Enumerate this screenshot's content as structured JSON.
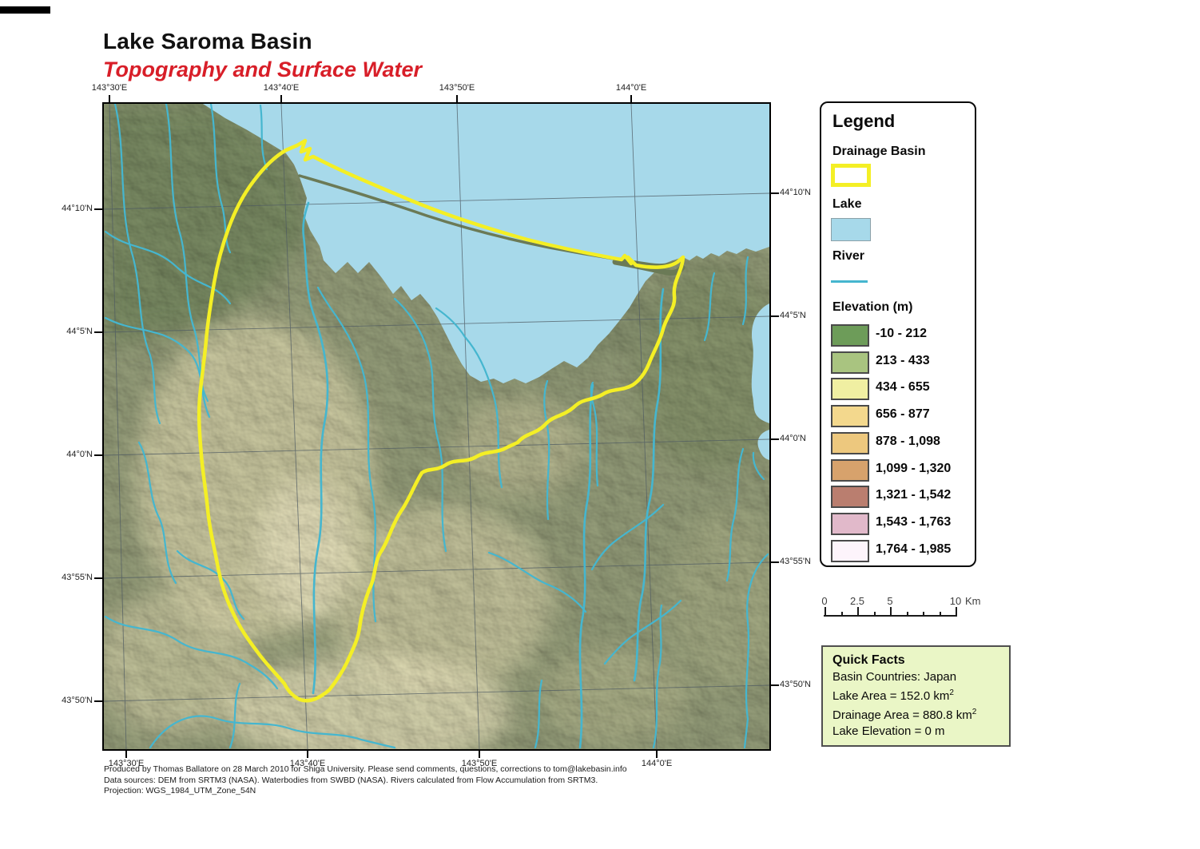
{
  "title": "Lake Saroma Basin",
  "subtitle": "Topography and Surface Water",
  "map": {
    "grid": {
      "top": [
        "143°30'E",
        "143°40'E",
        "143°50'E",
        "144°0'E"
      ],
      "bottom": [
        "143°30'E",
        "143°40'E",
        "143°50'E",
        "144°0'E"
      ],
      "left": [
        "44°10'N",
        "44°5'N",
        "44°0'N",
        "43°55'N",
        "43°50'N"
      ],
      "right": [
        "44°10'N",
        "44°5'N",
        "44°0'N",
        "43°55'N",
        "43°50'N"
      ]
    },
    "features": [
      "drainage-basin-outline",
      "lake-saroma",
      "sea-of-okhotsk",
      "sand-spit",
      "rivers",
      "graticule"
    ]
  },
  "legend": {
    "title": "Legend",
    "drainage_basin_label": "Drainage Basin",
    "lake_label": "Lake",
    "river_label": "River",
    "elevation_label": "Elevation (m)",
    "elevation_classes": [
      {
        "range": "-10 - 212",
        "color": "#6d9c59"
      },
      {
        "range": "213 - 433",
        "color": "#a9c480"
      },
      {
        "range": "434 - 655",
        "color": "#f0efa2"
      },
      {
        "range": "656 - 877",
        "color": "#f3d88d"
      },
      {
        "range": "878 - 1,098",
        "color": "#edc87e"
      },
      {
        "range": "1,099 - 1,320",
        "color": "#d7a26c"
      },
      {
        "range": "1,321 - 1,542",
        "color": "#ba7e6f"
      },
      {
        "range": "1,543 - 1,763",
        "color": "#e1b9ca"
      },
      {
        "range": "1,764 - 1,985",
        "color": "#fdf4fb"
      }
    ]
  },
  "scalebar": {
    "labels": [
      "0",
      "2.5",
      "5",
      "10"
    ],
    "unit": "Km"
  },
  "quick_facts": {
    "title": "Quick Facts",
    "basin_countries": "Basin Countries: Japan",
    "lake_area": "Lake Area = 152.0 km",
    "lake_area_sup": "2",
    "drainage_area": "Drainage Area =  880.8 km",
    "drainage_area_sup": "2",
    "lake_elevation": "Lake Elevation = 0 m"
  },
  "footer": {
    "line1": "Produced by Thomas Ballatore on 28 March 2010 for Shiga University. Please send comments, questions, corrections to tom@lakebasin.info",
    "line2": "Data sources: DEM from SRTM3 (NASA). Waterbodies from SWBD (NASA). Rivers calculated from Flow Accumulation from SRTM3.",
    "line3": "Projection: WGS_1984_UTM_Zone_54N"
  },
  "colors": {
    "sea": "#a7d9ea",
    "river": "#45b6cf",
    "basin_outline": "#f4ef25",
    "land": "#8e9674",
    "land_dark": "#75855e",
    "land_light": "#d6d0a8",
    "subtitle": "#d81e28",
    "quickfacts_bg": "#eaf6c6"
  }
}
